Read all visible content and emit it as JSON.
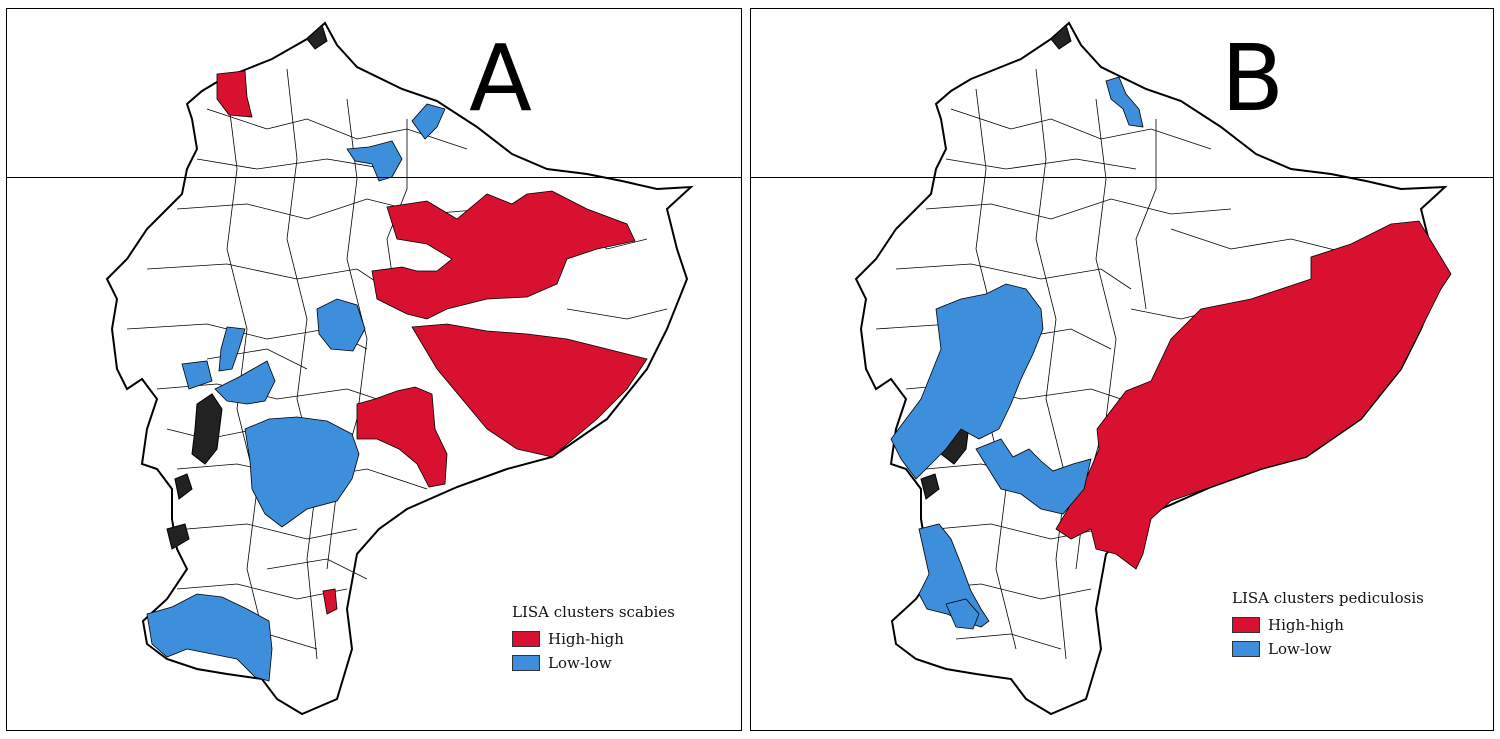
{
  "panels": [
    {
      "letter": "A",
      "legend": {
        "title": "LISA clusters scabies",
        "items": [
          {
            "label": "High-high",
            "color": "#d7112f"
          },
          {
            "label": "Low-low",
            "color": "#3d8fdc"
          }
        ]
      }
    },
    {
      "letter": "B",
      "legend": {
        "title": "LISA clusters pediculosis",
        "items": [
          {
            "label": "High-high",
            "color": "#d7112f"
          },
          {
            "label": "Low-low",
            "color": "#3d8fdc"
          }
        ]
      }
    }
  ],
  "colors": {
    "high_high": "#d7112f",
    "low_low": "#3d8fdc",
    "boundary": "#000000",
    "background": "#ffffff"
  }
}
